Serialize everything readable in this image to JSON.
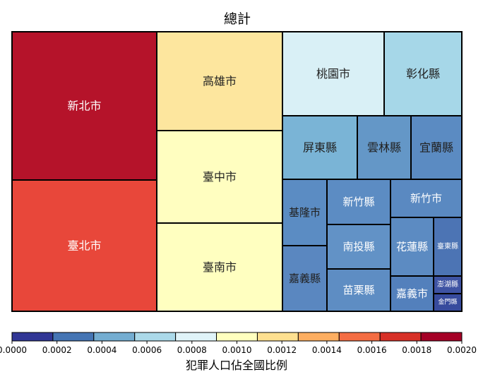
{
  "chart_data": {
    "type": "treemap",
    "title": "總計",
    "legend_title": "犯罪人口佔全國比例",
    "colorbar": {
      "min": 0.0,
      "max": 0.002,
      "ticks": [
        "0.0000",
        "0.0002",
        "0.0004",
        "0.0006",
        "0.0008",
        "0.0010",
        "0.0012",
        "0.0014",
        "0.0016",
        "0.0018",
        "0.0020"
      ],
      "colors": [
        "#313695",
        "#4575b4",
        "#74add1",
        "#abd9e9",
        "#e0f3f8",
        "#ffffbf",
        "#fee090",
        "#fdae61",
        "#f46d43",
        "#d73027",
        "#a50026"
      ]
    },
    "items": [
      {
        "name": "新北市",
        "share": 0.00201,
        "color": "#b5132a"
      },
      {
        "name": "臺北市",
        "share": 0.00172,
        "color": "#e8473a"
      },
      {
        "name": "高雄市",
        "share": 0.00115,
        "color": "#fde69e"
      },
      {
        "name": "臺中市",
        "share": 0.00103,
        "color": "#fffec0"
      },
      {
        "name": "臺南市",
        "share": 0.001,
        "color": "#ffffc0"
      },
      {
        "name": "桃園市",
        "share": 0.00078,
        "color": "#d9f0f6"
      },
      {
        "name": "彰化縣",
        "share": 0.00061,
        "color": "#a6d7e8"
      },
      {
        "name": "屏東縣",
        "share": 0.00047,
        "color": "#7ab4d6"
      },
      {
        "name": "雲林縣",
        "share": 0.00038,
        "color": "#6497c7"
      },
      {
        "name": "宜蘭縣",
        "share": 0.00034,
        "color": "#5b8bc2"
      },
      {
        "name": "基隆市",
        "share": 0.0003,
        "color": "#5b8cc3"
      },
      {
        "name": "新竹縣",
        "share": 0.0003,
        "color": "#5c8cc3"
      },
      {
        "name": "新竹市",
        "share": 0.00029,
        "color": "#5a89c1"
      },
      {
        "name": "南投縣",
        "share": 0.00036,
        "color": "#6292c6"
      },
      {
        "name": "花蓮縣",
        "share": 0.00031,
        "color": "#5c8bc2"
      },
      {
        "name": "臺東縣",
        "share": 0.00021,
        "color": "#4c74b4"
      },
      {
        "name": "嘉義縣",
        "share": 0.00029,
        "color": "#5a87c0"
      },
      {
        "name": "苗栗縣",
        "share": 0.00032,
        "color": "#5e8dc3"
      },
      {
        "name": "嘉義市",
        "share": 0.00024,
        "color": "#5380bc"
      },
      {
        "name": "澎湖縣",
        "share": 0.0001,
        "color": "#3e53a3"
      },
      {
        "name": "金門縣",
        "share": 6e-05,
        "color": "#374b9d"
      }
    ]
  }
}
